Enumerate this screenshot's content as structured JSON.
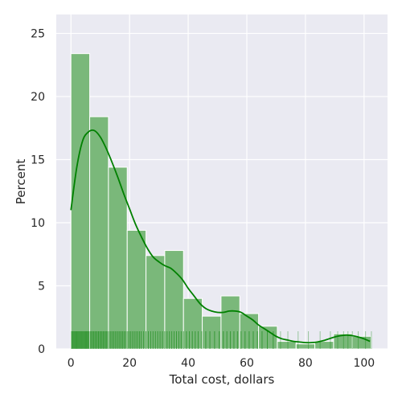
{
  "chart_data": {
    "type": "histogram",
    "xlabel": "Total cost, dollars",
    "ylabel": "Percent",
    "xlim": [
      -5,
      108
    ],
    "ylim": [
      0,
      26.5
    ],
    "x_ticks": [
      0,
      20,
      40,
      60,
      80,
      100
    ],
    "y_ticks": [
      0,
      5,
      10,
      15,
      20,
      25
    ],
    "grid": true,
    "bins": [
      {
        "start": 0.0,
        "end": 6.4,
        "percent": 23.4
      },
      {
        "start": 6.4,
        "end": 12.8,
        "percent": 18.4
      },
      {
        "start": 12.8,
        "end": 19.2,
        "percent": 14.4
      },
      {
        "start": 19.2,
        "end": 25.6,
        "percent": 9.4
      },
      {
        "start": 25.6,
        "end": 32.0,
        "percent": 7.4
      },
      {
        "start": 32.0,
        "end": 38.4,
        "percent": 7.8
      },
      {
        "start": 38.4,
        "end": 44.8,
        "percent": 4.0
      },
      {
        "start": 44.8,
        "end": 51.2,
        "percent": 2.6
      },
      {
        "start": 51.2,
        "end": 57.6,
        "percent": 4.2
      },
      {
        "start": 57.6,
        "end": 64.0,
        "percent": 2.8
      },
      {
        "start": 64.0,
        "end": 70.4,
        "percent": 1.8
      },
      {
        "start": 70.4,
        "end": 76.8,
        "percent": 0.6
      },
      {
        "start": 76.8,
        "end": 83.2,
        "percent": 0.4
      },
      {
        "start": 83.2,
        "end": 89.6,
        "percent": 0.6
      },
      {
        "start": 89.6,
        "end": 96.0,
        "percent": 1.2
      },
      {
        "start": 96.0,
        "end": 102.4,
        "percent": 1.0
      }
    ],
    "kde": {
      "x": [
        0,
        2,
        4,
        6,
        8,
        10,
        12,
        14,
        16,
        18,
        20,
        22,
        24,
        26,
        28,
        30,
        32,
        34,
        36,
        38,
        40,
        42,
        44,
        46,
        48,
        50,
        52,
        54,
        56,
        58,
        60,
        62,
        64,
        66,
        68,
        70,
        72,
        74,
        76,
        78,
        80,
        82,
        84,
        86,
        88,
        90,
        92,
        94,
        96,
        98,
        100,
        102
      ],
      "y": [
        11.0,
        14.4,
        16.5,
        17.2,
        17.3,
        16.8,
        15.9,
        14.8,
        13.6,
        12.3,
        11.1,
        9.9,
        8.9,
        8.0,
        7.3,
        6.9,
        6.6,
        6.4,
        6.0,
        5.5,
        4.8,
        4.2,
        3.6,
        3.2,
        3.0,
        2.9,
        2.9,
        3.0,
        3.0,
        2.9,
        2.6,
        2.3,
        1.9,
        1.6,
        1.3,
        1.0,
        0.8,
        0.7,
        0.6,
        0.55,
        0.5,
        0.5,
        0.55,
        0.65,
        0.8,
        0.95,
        1.05,
        1.1,
        1.05,
        0.95,
        0.8,
        0.6
      ]
    },
    "rug_x": [
      0.2,
      0.5,
      0.8,
      1.1,
      1.4,
      1.7,
      2.0,
      2.3,
      2.6,
      2.9,
      3.2,
      3.5,
      3.8,
      4.1,
      4.4,
      4.7,
      5.0,
      5.3,
      5.6,
      5.9,
      6.2,
      6.6,
      7.0,
      7.4,
      7.8,
      8.2,
      8.6,
      9.0,
      9.4,
      9.8,
      10.2,
      10.6,
      11.0,
      11.4,
      11.8,
      12.2,
      12.6,
      13.1,
      13.6,
      14.1,
      14.6,
      15.1,
      15.6,
      16.1,
      16.6,
      17.1,
      17.6,
      18.1,
      18.6,
      19.2,
      19.8,
      20.4,
      21.0,
      21.6,
      22.2,
      22.8,
      23.4,
      24.0,
      24.8,
      25.6,
      26.4,
      27.2,
      28.0,
      28.8,
      29.6,
      30.4,
      31.2,
      32.0,
      32.8,
      33.6,
      34.4,
      35.2,
      36.0,
      36.8,
      37.6,
      38.4,
      39.4,
      40.4,
      41.4,
      42.4,
      43.4,
      44.6,
      46.0,
      47.4,
      49.0,
      50.6,
      52.0,
      53.2,
      54.4,
      55.6,
      56.8,
      58.0,
      59.4,
      60.8,
      62.2,
      63.6,
      65.2,
      67.0,
      69.0,
      71.5,
      74.0,
      77.5,
      81.0,
      85.0,
      88.5,
      91.0,
      93.0,
      94.5,
      96.0,
      98.0,
      100.5,
      102.5
    ]
  },
  "colors": {
    "background": "#eaeaf2",
    "grid": "#ffffff",
    "bar_fill": "#7ab87a",
    "bar_edge": "#ffffff",
    "kde_line": "#008000",
    "rug": "#008000"
  }
}
